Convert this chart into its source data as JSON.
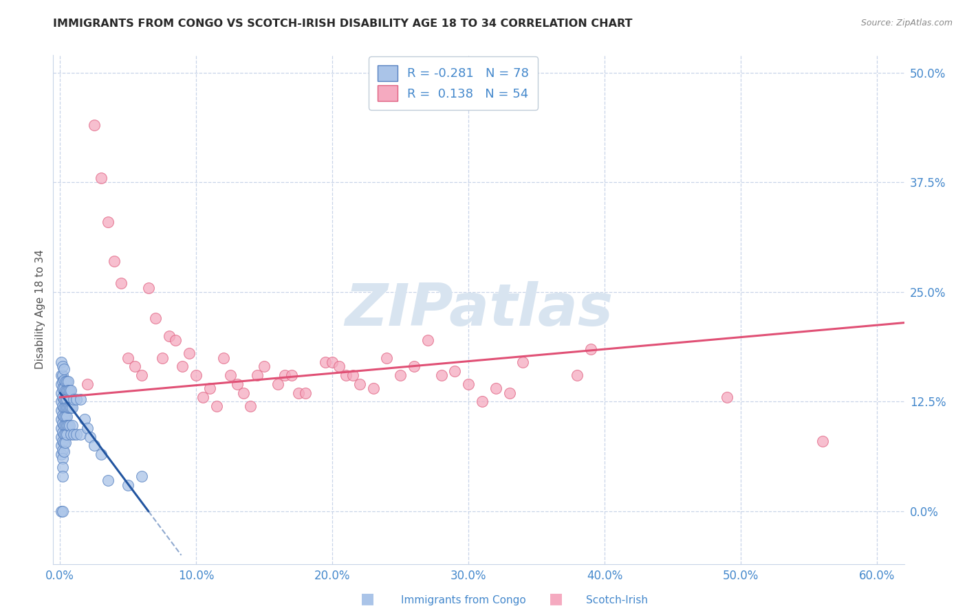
{
  "title": "IMMIGRANTS FROM CONGO VS SCOTCH-IRISH DISABILITY AGE 18 TO 34 CORRELATION CHART",
  "source": "Source: ZipAtlas.com",
  "xlabel_ticks": [
    "0.0%",
    "10.0%",
    "20.0%",
    "30.0%",
    "40.0%",
    "50.0%",
    "60.0%"
  ],
  "xlabel_vals": [
    0.0,
    0.1,
    0.2,
    0.3,
    0.4,
    0.5,
    0.6
  ],
  "ylabel_ticks": [
    "50.0%",
    "37.5%",
    "25.0%",
    "12.5%",
    "0.0%"
  ],
  "ylabel_vals": [
    0.5,
    0.375,
    0.25,
    0.125,
    0.0
  ],
  "ylabel_label": "Disability Age 18 to 34",
  "xlim": [
    -0.005,
    0.62
  ],
  "ylim": [
    -0.06,
    0.52
  ],
  "congo_R": -0.281,
  "congo_N": 78,
  "scotch_R": 0.138,
  "scotch_N": 54,
  "congo_color": "#aac4e8",
  "scotch_color": "#f5aac0",
  "congo_edge_color": "#5580c0",
  "scotch_edge_color": "#e06080",
  "congo_line_color": "#2255a0",
  "scotch_line_color": "#e05075",
  "background_color": "#ffffff",
  "grid_color": "#c8d4e8",
  "watermark_color": "#d8e4f0",
  "title_color": "#282828",
  "axis_color": "#4488cc",
  "legend_label_1": "Immigrants from Congo",
  "legend_label_2": "Scotch-Irish",
  "congo_x": [
    0.001,
    0.001,
    0.001,
    0.001,
    0.001,
    0.001,
    0.001,
    0.001,
    0.001,
    0.001,
    0.002,
    0.002,
    0.002,
    0.002,
    0.002,
    0.002,
    0.002,
    0.002,
    0.002,
    0.002,
    0.002,
    0.002,
    0.002,
    0.003,
    0.003,
    0.003,
    0.003,
    0.003,
    0.003,
    0.003,
    0.003,
    0.003,
    0.004,
    0.004,
    0.004,
    0.004,
    0.004,
    0.004,
    0.004,
    0.004,
    0.005,
    0.005,
    0.005,
    0.005,
    0.005,
    0.005,
    0.005,
    0.006,
    0.006,
    0.006,
    0.006,
    0.007,
    0.007,
    0.007,
    0.008,
    0.008,
    0.008,
    0.009,
    0.009,
    0.01,
    0.01,
    0.012,
    0.012,
    0.015,
    0.015,
    0.018,
    0.02,
    0.022,
    0.025,
    0.03,
    0.001,
    0.002,
    0.003,
    0.001,
    0.002,
    0.035,
    0.05,
    0.06
  ],
  "congo_y": [
    0.155,
    0.145,
    0.135,
    0.125,
    0.115,
    0.105,
    0.095,
    0.085,
    0.075,
    0.065,
    0.155,
    0.148,
    0.14,
    0.13,
    0.12,
    0.11,
    0.1,
    0.09,
    0.08,
    0.07,
    0.06,
    0.05,
    0.04,
    0.15,
    0.14,
    0.128,
    0.118,
    0.108,
    0.098,
    0.088,
    0.078,
    0.068,
    0.148,
    0.138,
    0.128,
    0.118,
    0.108,
    0.098,
    0.088,
    0.078,
    0.148,
    0.138,
    0.128,
    0.118,
    0.108,
    0.098,
    0.088,
    0.148,
    0.138,
    0.118,
    0.098,
    0.138,
    0.118,
    0.098,
    0.138,
    0.118,
    0.088,
    0.118,
    0.098,
    0.128,
    0.088,
    0.128,
    0.088,
    0.128,
    0.088,
    0.105,
    0.095,
    0.085,
    0.075,
    0.065,
    0.17,
    0.165,
    0.162,
    0.0,
    0.0,
    0.035,
    0.03,
    0.04
  ],
  "scotch_x": [
    0.02,
    0.025,
    0.03,
    0.035,
    0.04,
    0.045,
    0.05,
    0.055,
    0.06,
    0.065,
    0.07,
    0.075,
    0.08,
    0.085,
    0.09,
    0.095,
    0.1,
    0.105,
    0.11,
    0.115,
    0.12,
    0.125,
    0.13,
    0.135,
    0.14,
    0.145,
    0.15,
    0.16,
    0.165,
    0.17,
    0.175,
    0.18,
    0.195,
    0.2,
    0.205,
    0.21,
    0.215,
    0.22,
    0.23,
    0.24,
    0.25,
    0.26,
    0.27,
    0.28,
    0.29,
    0.3,
    0.31,
    0.32,
    0.33,
    0.34,
    0.38,
    0.39,
    0.49,
    0.56
  ],
  "scotch_y": [
    0.145,
    0.44,
    0.38,
    0.33,
    0.285,
    0.26,
    0.175,
    0.165,
    0.155,
    0.255,
    0.22,
    0.175,
    0.2,
    0.195,
    0.165,
    0.18,
    0.155,
    0.13,
    0.14,
    0.12,
    0.175,
    0.155,
    0.145,
    0.135,
    0.12,
    0.155,
    0.165,
    0.145,
    0.155,
    0.155,
    0.135,
    0.135,
    0.17,
    0.17,
    0.165,
    0.155,
    0.155,
    0.145,
    0.14,
    0.175,
    0.155,
    0.165,
    0.195,
    0.155,
    0.16,
    0.145,
    0.125,
    0.14,
    0.135,
    0.17,
    0.155,
    0.185,
    0.13,
    0.08
  ],
  "congo_line_x": [
    0.0,
    0.065
  ],
  "congo_line_y_start": 0.135,
  "congo_line_y_end": 0.0,
  "scotch_line_x": [
    0.0,
    0.62
  ],
  "scotch_line_y_start": 0.13,
  "scotch_line_y_end": 0.215
}
